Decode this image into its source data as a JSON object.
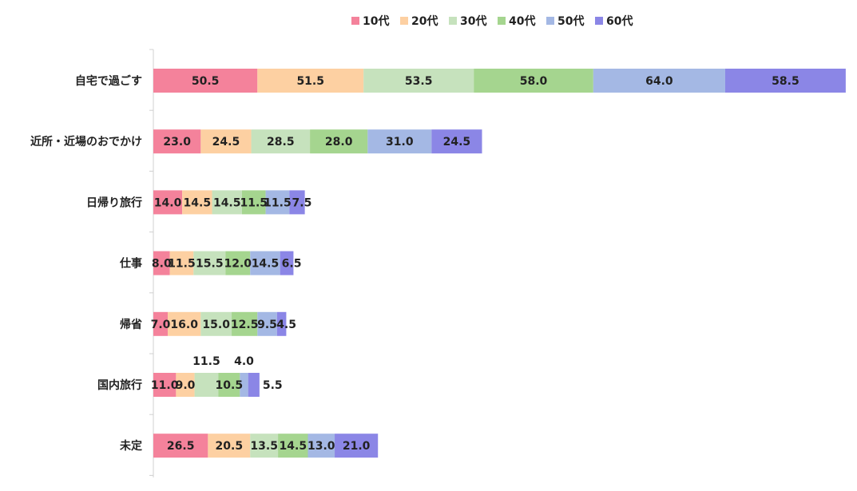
{
  "chart_data": {
    "type": "bar",
    "orientation": "horizontal",
    "stacked": true,
    "title": "",
    "xlabel": "",
    "ylabel": "",
    "xlim": [
      0,
      340
    ],
    "grid": false,
    "legend_position": "top",
    "categories": [
      "自宅で過ごす",
      "近所・近場のおでかけ",
      "日帰り旅行",
      "仕事",
      "帰省",
      "国内旅行",
      "未定"
    ],
    "series": [
      {
        "name": "10代",
        "color": "#f4829b",
        "values": [
          50.5,
          23.0,
          14.0,
          8.0,
          7.0,
          11.0,
          26.5
        ]
      },
      {
        "name": "20代",
        "color": "#fdd0a2",
        "values": [
          51.5,
          24.5,
          14.5,
          11.5,
          16.0,
          9.0,
          20.5
        ]
      },
      {
        "name": "30代",
        "color": "#c6e2bd",
        "values": [
          53.5,
          28.5,
          14.5,
          15.5,
          15.0,
          11.5,
          13.5
        ]
      },
      {
        "name": "40代",
        "color": "#a5d58f",
        "values": [
          58.0,
          28.0,
          11.5,
          12.0,
          12.5,
          10.5,
          14.5
        ]
      },
      {
        "name": "50代",
        "color": "#a4b8e4",
        "values": [
          64.0,
          31.0,
          11.5,
          14.5,
          9.5,
          4.0,
          13.0
        ]
      },
      {
        "name": "60代",
        "color": "#8b86e6",
        "values": [
          58.5,
          24.5,
          7.5,
          6.5,
          4.5,
          5.5,
          21.0
        ]
      }
    ]
  }
}
